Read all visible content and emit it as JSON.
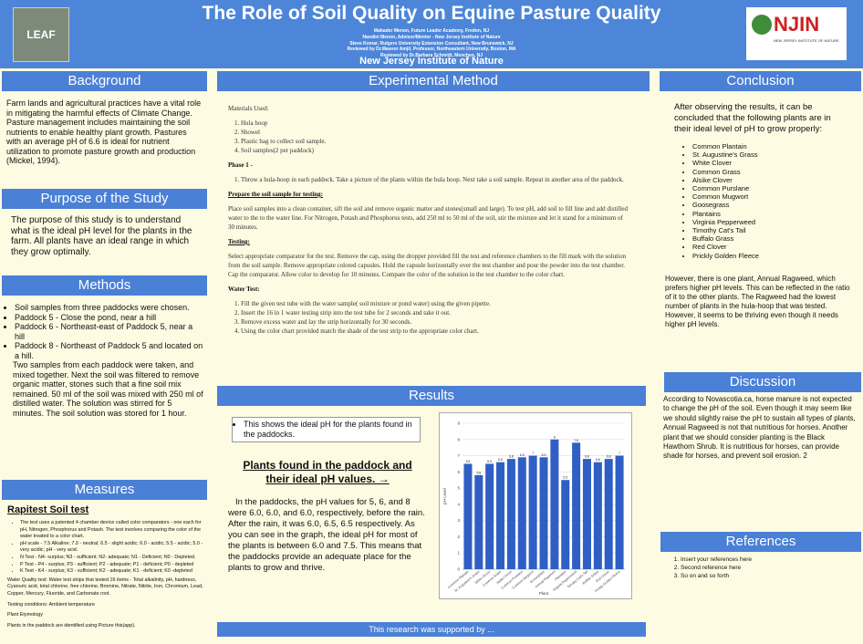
{
  "header": {
    "title": "The Role of Soil Quality on Equine Pasture Quality",
    "authors": [
      "Mahader Menon, Future Leader Academy, Fredon, NJ",
      "Nandini Menon, Advisor/Mentor - New Jersey Institute of Nature",
      "Steve Komar, Rutgers University Extension Consultant, New Brunswick, NJ",
      "Reviewed by Dr.Masoor Amjil, Professor, Northeastern University, Boston, MA",
      "Reviewed by Dr.Barbara Schmidt, Menchen, NJ"
    ],
    "institute": "New Jersey Institute of Nature",
    "logo_left": "LEAF",
    "logo_right": "NJIN",
    "logo_right_sub": "NEW JERSEY INSTITUTE OF NATURE"
  },
  "background": {
    "heading": "Background",
    "text": "Farm lands and agricultural practices have a vital role in mitigating the harmful effects of Climate Change. Pasture management includes maintaining the soil nutrients to enable healthy plant growth. Pastures with an average pH of 6.6 is ideal for nutrient utilization to promote pasture growth and production (Mickel, 1994)."
  },
  "purpose": {
    "heading": "Purpose of the Study",
    "text": "The purpose of this study is to understand what is the ideal pH level for the plants in the farm. All plants have an ideal range in which they grow optimally."
  },
  "methods": {
    "heading": "Methods",
    "items": [
      "Soil samples from three paddocks were chosen.",
      "Paddock 5 - Close the pond, near a hill",
      "Paddock 6 - Northeast-east of Paddock 5, near a hill",
      "Paddock 8 - Northeast of Paddock 5 and located on a hill."
    ],
    "note": "Two samples from each paddock were taken, and mixed together. Next the soil was filtered to remove organic matter, stones such that a fine soil mix remained. 50 ml of the soil was mixed with 250 ml of distilled water. The solution was stirred for 5 minutes. The soil solution was stored for 1 hour."
  },
  "measures": {
    "heading": "Measures",
    "subheading": "Rapitest Soil test",
    "items": [
      "The test uses a patented 4 chamber device called color comparators - one each for pH, Nitrogen, Phosphorus and Potash. The test involves comparing the color of the water treated to a color chart.",
      "pH scale - 7.5 Alkaline; 7.0 - neutral; 6.5 - slight acidic; 6.0 - acidic; 5.5 - acidic; 5.0 - very acidic; pH - very acid.",
      "N Test - N4- surplus; N3 - sufficient; N2- adequate; N1 - Deficient; N0 - Depleted.",
      "P Test - P4 - surplus; P3 - sufficient; P2 - adequate; P1 - deficient; P0 - depleted",
      "K Test - K4 - surplus; K3 - sufficient; K2 - adequate; K1 - deficient; K0 -depleted"
    ],
    "paragraphs": [
      "Water Quality test: Water test strips that tested 16 items - Total alkalinity, pH, hardness, Cyanuric acid, total chlorine, free chlorine, Bromine, Nitrate, Nitrite, Iron, Chromium, Lead, Copper, Mercury, Fluoride, and Carbonate root.",
      "Testing conditions: Ambient temperature",
      "Plant Etymology",
      "Plants in the paddock are identified using Picture this(app)."
    ]
  },
  "experimental": {
    "heading": "Experimental Method",
    "materials_title": "Materials Used:",
    "materials": [
      "Hula hoop",
      "Showel",
      "Plastic bag to collect soil sample.",
      "Soil samples(2 per paddock)"
    ],
    "phase_title": "Phase 1 -",
    "phase_steps": [
      "Throw a hula-hoop in each paddock. Take a picture of the plants within the hula hoop. Next take a soil sample. Repeat in another area of the paddock."
    ],
    "prepare_title": "Prepare the soil sample for testing:",
    "prepare_text": "Place soil samples into a clean container, sift the soil and remove organic matter and stones(small and large). To test pH, add soil to fill line and add distilled water to the to the water line. For Nitrogen, Potash and Phosphorus tests, add 250 ml to 50 ml of the soil, stir the mixture and let it stand for a minimum of 30 minutes.",
    "testing_title": "Testing:",
    "testing_text": "Select appropriate comparator for the test. Remove the cap, using the dropper provided fill the test and reference chambers to the fill mark with the solution from the soil sample. Remove appropriate colored capsules. Hold the capsule horizontally over the test chamber and pour the powder into the test chamber. Cap the comparator. Allow color to develop for 10 minutes. Compare the color of the solution in the test chamber to the color chart.",
    "water_title": "Water Test:",
    "water_steps": [
      "Fill the given test tube with the water sample( soil mixture or pond water) using the given pipette.",
      "Insert the 16 in 1 water testing strip into the test tube for 2 seconds and take it out.",
      "Remove excess water and lay the strip horizontally for 30 seconds.",
      "Using the color chart provided match the shade of the test strip to the appropriate color chart."
    ]
  },
  "results": {
    "heading": "Results",
    "box": "This shows the ideal pH for the plants found in the paddocks.",
    "caption": "Plants found in the paddock and their ideal pH values. →",
    "text": "In the paddocks, the pH values for 5, 6, and 8 were 6.0, 6.0, and 6.0, respectively, before the rain. After the rain, it was 6.0, 6.5, 6.5 respectively. As you can see in the graph, the ideal pH for most of the plants is between 6.0 and 7.5. This means that the paddocks provide an adequate place for the plants to grow and thrive."
  },
  "chart_data": {
    "type": "bar",
    "y_label": "pH Level",
    "x_label": "Plant",
    "categories": [
      "Common Plantain",
      "St. Augustine's Grass",
      "White Clover",
      "Common Grass",
      "Alsike Clover",
      "Common Purslane",
      "Common Mugwort",
      "Goosegrass",
      "Annual Ragweed",
      "Plantains",
      "Virginia Pepperweed",
      "Timothy Cat's Tail",
      "Buffalo Grass",
      "Red Clover",
      "Prickly Golden Fleece"
    ],
    "values": [
      6.5,
      5.8,
      6.5,
      6.6,
      6.8,
      6.9,
      7.0,
      6.9,
      8.0,
      5.5,
      7.8,
      6.8,
      6.6,
      6.8,
      7.0
    ],
    "color": "#2f5fc4",
    "ylim": [
      0,
      9
    ],
    "yticks": [
      0,
      1,
      2,
      3,
      4,
      5,
      6,
      7,
      8,
      9
    ],
    "grid": true
  },
  "footer": "This research was supported by ...",
  "conclusion": {
    "heading": "Conclusion",
    "intro": "After observing the results, it can be concluded that the following plants are in their ideal level of pH to grow properly:",
    "plants": [
      "Common Plantain",
      "St. Augustine's Grass",
      "White Clover",
      "Common Grass",
      "Alsike Clover",
      "Common Purslane",
      "Common Mugwort",
      "Goosegrass",
      "Plantains",
      "Virginia Pepperweed",
      "Timothy Cat's Tail",
      "Buffalo Grass",
      "Red Clover",
      "Prickly Golden Fleece"
    ],
    "text": "However, there is one plant, Annual Ragweed, which prefers higher pH levels. This can be reflected in the ratio of it to the other plants. The Ragweed had the lowest number of plants in the hula-hoop that was tested. However, it seems to be thriving even though it needs higher pH levels."
  },
  "discussion": {
    "heading": "Discussion",
    "text": "According to Novascotia.ca, horse manure is not expected to change the pH of the soil. Even though it may seem like we should slightly raise the pH to sustain all types of plants, Annual Ragweed is not that nutritious for horses. Another plant that we should consider planting is the Black Hawthorn Shrub. It is nutritious for horses, can provide shade for horses, and prevent soil erosion. 2"
  },
  "references": {
    "heading": "References",
    "items": [
      "Insert your references here",
      "Second reference here",
      "So on and so forth"
    ]
  }
}
